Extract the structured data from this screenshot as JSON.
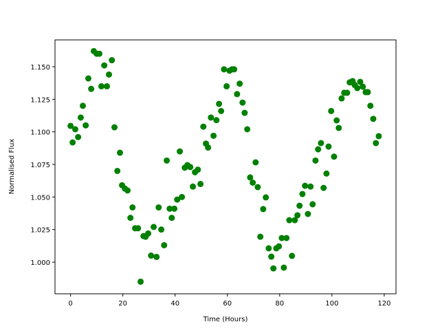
{
  "chart_data": {
    "type": "scatter",
    "x_label": "Time (Hours)",
    "y_label": "Normalised Flux",
    "color": "#008000",
    "x": [
      0,
      0.8,
      1.8,
      2.9,
      3.9,
      4.7,
      5.8,
      6.8,
      7.9,
      8.9,
      10,
      11,
      11.8,
      12.9,
      13.9,
      14.7,
      15.8,
      16.8,
      17.9,
      18.9,
      19.7,
      20.8,
      21.8,
      22.9,
      23.7,
      24.7,
      25.8,
      26.8,
      27.9,
      28.7,
      29.7,
      30.8,
      31.8,
      32.9,
      33.7,
      34.7,
      35.8,
      36.8,
      37.9,
      38.7,
      39.7,
      40.8,
      41.8,
      42.6,
      43.7,
      44.7,
      45.8,
      46.8,
      47.6,
      48.7,
      49.7,
      50.8,
      51.8,
      52.6,
      53.7,
      54.7,
      55.8,
      56.8,
      57.6,
      58.7,
      59.7,
      60.8,
      61.8,
      62.6,
      63.7,
      64.7,
      65.8,
      66.6,
      67.6,
      68.7,
      69.7,
      70.8,
      71.6,
      72.6,
      73.7,
      74.7,
      75.8,
      76.8,
      77.6,
      78.7,
      79.7,
      80.8,
      81.6,
      82.6,
      83.7,
      84.7,
      85.8,
      86.8,
      87.6,
      88.7,
      89.7,
      90.8,
      91.8,
      92.6,
      93.7,
      94.7,
      95.8,
      96.8,
      97.9,
      98.7,
      99.7,
      100.8,
      101.8,
      102.6,
      103.7,
      104.7,
      105.8,
      106.8,
      107.9,
      108.7,
      109.7,
      110.8,
      111.8,
      112.9,
      113.7,
      114.7,
      115.8,
      116.8,
      117.9
    ],
    "values": [
      1.1046,
      1.0919,
      1.102,
      1.096,
      1.111,
      1.12,
      1.105,
      1.141,
      1.133,
      1.162,
      1.16,
      1.16,
      1.135,
      1.151,
      1.135,
      1.144,
      1.155,
      1.1035,
      1.07,
      1.084,
      1.059,
      1.0565,
      1.055,
      1.034,
      1.042,
      1.026,
      1.026,
      0.985,
      1.02,
      1.0195,
      1.022,
      1.005,
      1.027,
      1.004,
      1.042,
      1.025,
      1.013,
      1.078,
      1.041,
      1.034,
      1.041,
      1.048,
      1.085,
      1.05,
      1.0725,
      1.0745,
      1.073,
      1.058,
      1.069,
      1.071,
      1.06,
      1.104,
      1.091,
      1.088,
      1.111,
      1.097,
      1.109,
      1.1215,
      1.116,
      1.148,
      1.135,
      1.147,
      1.148,
      1.148,
      1.129,
      1.137,
      1.1225,
      1.1146,
      1.102,
      1.065,
      1.061,
      1.0766,
      1.0576,
      1.0195,
      1.0407,
      1.0497,
      1.0106,
      1.0042,
      0.9952,
      1.0106,
      1.0121,
      1.0185,
      0.9958,
      1.0185,
      1.0322,
      1.0048,
      1.0322,
      1.036,
      1.0433,
      1.0523,
      1.0586,
      1.037,
      1.058,
      1.0444,
      1.078,
      1.0866,
      1.0914,
      1.057,
      1.068,
      1.0887,
      1.116,
      1.081,
      1.1088,
      1.103,
      1.1257,
      1.13,
      1.13,
      1.138,
      1.139,
      1.136,
      1.1336,
      1.1384,
      1.1347,
      1.1305,
      1.1305,
      1.12,
      1.11,
      1.0914,
      1.0967
    ],
    "xlim": [
      -5.95,
      124.5
    ],
    "ylim": [
      0.9757,
      1.1706
    ],
    "xticks": [
      0,
      20,
      40,
      60,
      80,
      100,
      120
    ],
    "yticks": [
      {
        "value": 1.0,
        "label": "1.000"
      },
      {
        "value": 1.025,
        "label": "1.025"
      },
      {
        "value": 1.05,
        "label": "1.050"
      },
      {
        "value": 1.075,
        "label": "1.075"
      },
      {
        "value": 1.1,
        "label": "1.100"
      },
      {
        "value": 1.125,
        "label": "1.125"
      },
      {
        "value": 1.15,
        "label": "1.150"
      }
    ]
  }
}
